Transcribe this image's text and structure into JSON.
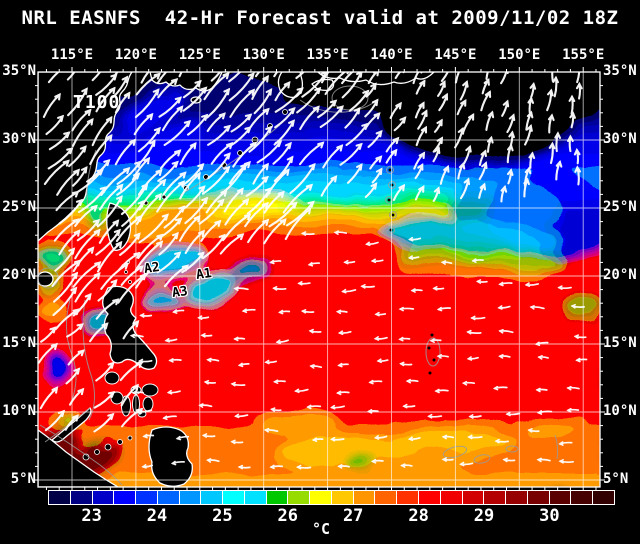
{
  "title": "NRL EASNFS  42-Hr Forecast valid at 2009/11/02 18Z",
  "map": {
    "model_label": "T100",
    "markers": [
      "A1",
      "A2",
      "A3"
    ],
    "top_axis": [
      "115°E",
      "120°E",
      "125°E",
      "130°E",
      "135°E",
      "140°E",
      "145°E",
      "150°E",
      "155°E"
    ],
    "left_axis": [
      "35°N",
      "30°N",
      "25°N",
      "20°N",
      "15°N",
      "10°N",
      "5°N"
    ],
    "right_axis": [
      "35°N",
      "30°N",
      "25°N",
      "20°N",
      "15°N",
      "10°N",
      "5°N"
    ]
  },
  "colorbar": {
    "unit": "°C",
    "tick_labels": [
      "23",
      "24",
      "25",
      "26",
      "27",
      "28",
      "29",
      "30"
    ],
    "cell_colors": [
      "#000046",
      "#000082",
      "#0000C8",
      "#0000FF",
      "#0032FF",
      "#0064FF",
      "#0096FF",
      "#00C8FF",
      "#00FFFF",
      "#00E1FF",
      "#00C800",
      "#96DC00",
      "#FFFF00",
      "#FFC800",
      "#FF9600",
      "#FF6400",
      "#FF3200",
      "#FF0000",
      "#F00000",
      "#D20000",
      "#B40000",
      "#960000",
      "#780000",
      "#5A0000",
      "#460000",
      "#320000"
    ]
  },
  "colors": {
    "background": "#000000",
    "text": "#FFFFFF",
    "grid": "#FFFFFF",
    "land": "#000000",
    "coastline": "#FFFFFF",
    "bathymetry_contour": "#9B9B9B",
    "vector": "#FFFFFF"
  }
}
